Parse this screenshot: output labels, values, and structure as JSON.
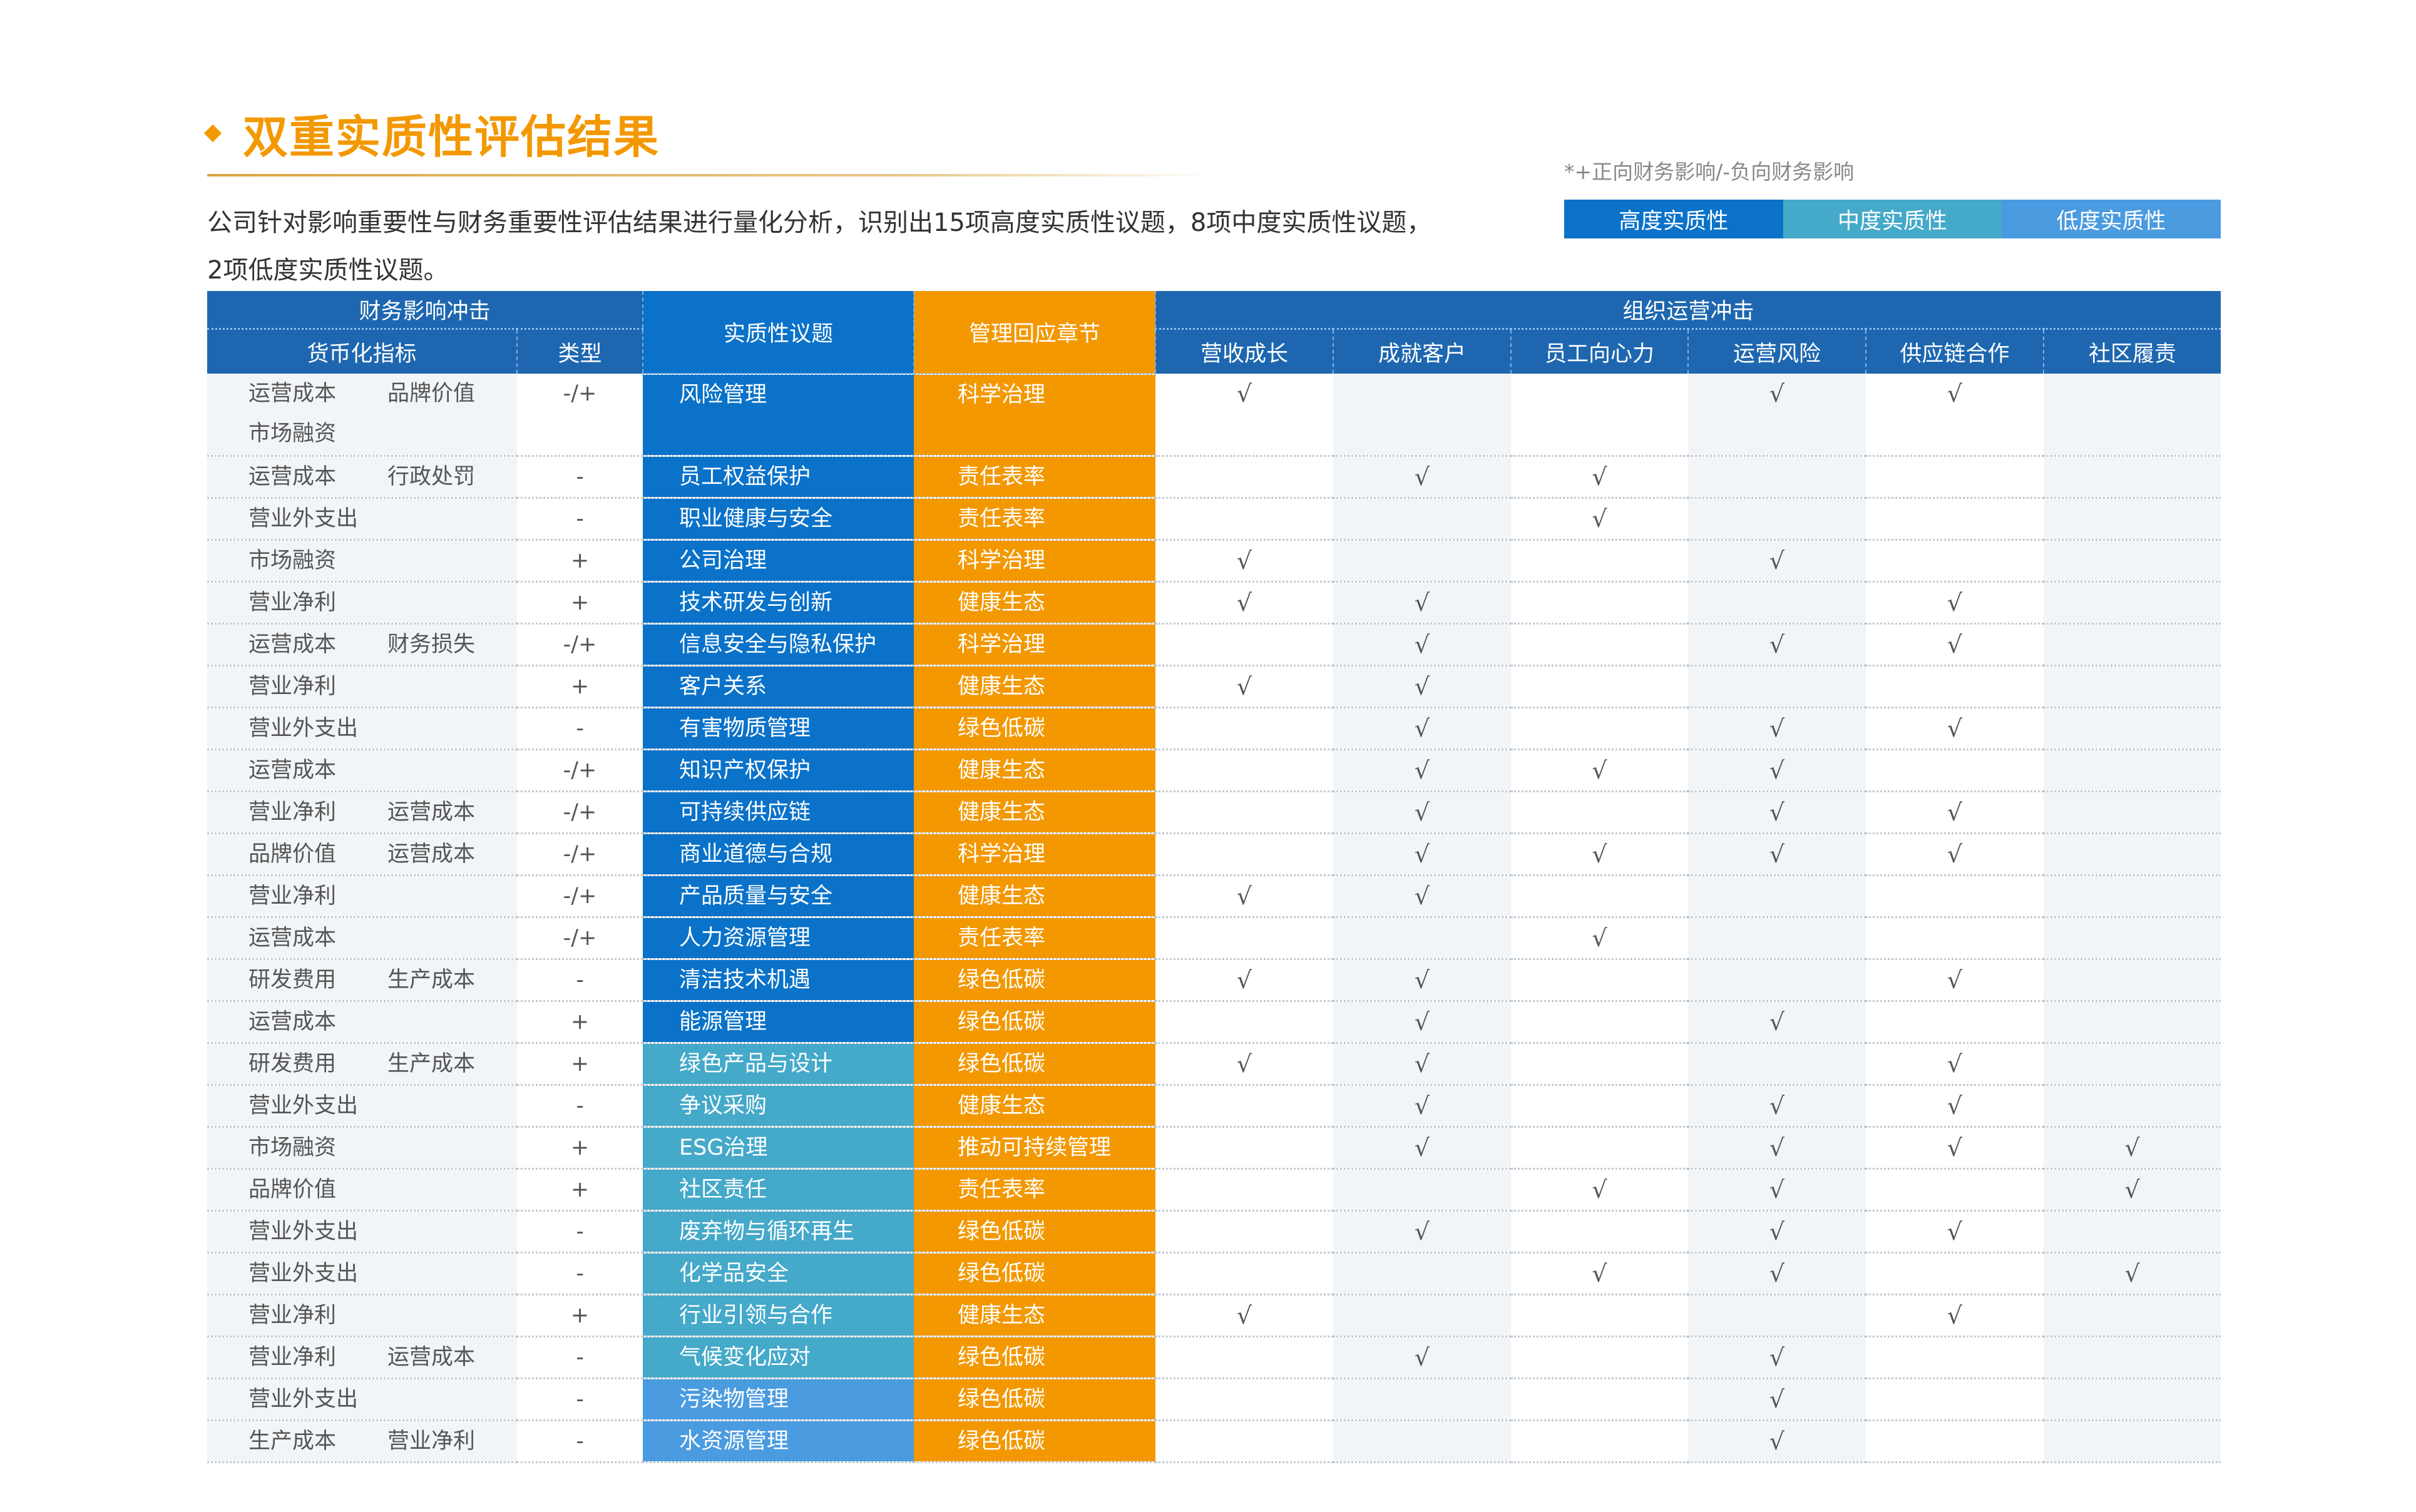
{
  "header": {
    "title": "双重实质性评估结果",
    "intro_line1": "公司针对影响重要性与财务重要性评估结果进行量化分析，识别出15项高度实质性议题，8项中度实质性议题，",
    "intro_line2": "2项低度实质性议题。",
    "note": "*+正向财务影响/-负向财务影响"
  },
  "legend": [
    {
      "label": "高度实质性",
      "color": "#0a72c9"
    },
    {
      "label": "中度实质性",
      "color": "#45a9c9"
    },
    {
      "label": "低度实质性",
      "color": "#4a9be0"
    }
  ],
  "colors": {
    "accent": "#f39800",
    "header_blue": "#1e67b0"
  },
  "table": {
    "group_financial": "财务影响冲击",
    "col_money": "货币化指标",
    "col_type": "类型",
    "col_issue": "实质性议题",
    "col_chapter": "管理回应章节",
    "group_operational": "组织运营冲击",
    "op_columns": [
      "营收成长",
      "成就客户",
      "员工向心力",
      "运营风险",
      "供应链合作",
      "社区履责"
    ],
    "check_mark": "√",
    "rows": [
      {
        "money": [
          [
            "运营成本",
            "品牌价值"
          ],
          [
            "市场融资",
            ""
          ]
        ],
        "type": "-/+",
        "issue": "风险管理",
        "level": 0,
        "chapter": "科学治理",
        "checks": [
          1,
          0,
          0,
          1,
          1,
          0
        ]
      },
      {
        "money": [
          [
            "运营成本",
            "行政处罚"
          ]
        ],
        "type": "-",
        "issue": "员工权益保护",
        "level": 0,
        "chapter": "责任表率",
        "checks": [
          0,
          1,
          1,
          0,
          0,
          0
        ]
      },
      {
        "money": [
          [
            "营业外支出",
            ""
          ]
        ],
        "type": "-",
        "issue": "职业健康与安全",
        "level": 0,
        "chapter": "责任表率",
        "checks": [
          0,
          0,
          1,
          0,
          0,
          0
        ]
      },
      {
        "money": [
          [
            "市场融资",
            ""
          ]
        ],
        "type": "+",
        "issue": "公司治理",
        "level": 0,
        "chapter": "科学治理",
        "checks": [
          1,
          0,
          0,
          1,
          0,
          0
        ]
      },
      {
        "money": [
          [
            "营业净利",
            ""
          ]
        ],
        "type": "+",
        "issue": "技术研发与创新",
        "level": 0,
        "chapter": "健康生态",
        "checks": [
          1,
          1,
          0,
          0,
          1,
          0
        ]
      },
      {
        "money": [
          [
            "运营成本",
            "财务损失"
          ]
        ],
        "type": "-/+",
        "issue": "信息安全与隐私保护",
        "level": 0,
        "chapter": "科学治理",
        "checks": [
          0,
          1,
          0,
          1,
          1,
          0
        ]
      },
      {
        "money": [
          [
            "营业净利",
            ""
          ]
        ],
        "type": "+",
        "issue": "客户关系",
        "level": 0,
        "chapter": "健康生态",
        "checks": [
          1,
          1,
          0,
          0,
          0,
          0
        ]
      },
      {
        "money": [
          [
            "营业外支出",
            ""
          ]
        ],
        "type": "-",
        "issue": "有害物质管理",
        "level": 0,
        "chapter": "绿色低碳",
        "checks": [
          0,
          1,
          0,
          1,
          1,
          0
        ]
      },
      {
        "money": [
          [
            "运营成本",
            ""
          ]
        ],
        "type": "-/+",
        "issue": "知识产权保护",
        "level": 0,
        "chapter": "健康生态",
        "checks": [
          0,
          1,
          1,
          1,
          0,
          0
        ]
      },
      {
        "money": [
          [
            "营业净利",
            "运营成本"
          ]
        ],
        "type": "-/+",
        "issue": "可持续供应链",
        "level": 0,
        "chapter": "健康生态",
        "checks": [
          0,
          1,
          0,
          1,
          1,
          0
        ]
      },
      {
        "money": [
          [
            "品牌价值",
            "运营成本"
          ]
        ],
        "type": "-/+",
        "issue": "商业道德与合规",
        "level": 0,
        "chapter": "科学治理",
        "checks": [
          0,
          1,
          1,
          1,
          1,
          0
        ]
      },
      {
        "money": [
          [
            "营业净利",
            ""
          ]
        ],
        "type": "-/+",
        "issue": "产品质量与安全",
        "level": 0,
        "chapter": "健康生态",
        "checks": [
          1,
          1,
          0,
          0,
          0,
          0
        ]
      },
      {
        "money": [
          [
            "运营成本",
            ""
          ]
        ],
        "type": "-/+",
        "issue": "人力资源管理",
        "level": 0,
        "chapter": "责任表率",
        "checks": [
          0,
          0,
          1,
          0,
          0,
          0
        ]
      },
      {
        "money": [
          [
            "研发费用",
            "生产成本"
          ]
        ],
        "type": "-",
        "issue": "清洁技术机遇",
        "level": 0,
        "chapter": "绿色低碳",
        "checks": [
          1,
          1,
          0,
          0,
          1,
          0
        ]
      },
      {
        "money": [
          [
            "运营成本",
            ""
          ]
        ],
        "type": "+",
        "issue": "能源管理",
        "level": 0,
        "chapter": "绿色低碳",
        "checks": [
          0,
          1,
          0,
          1,
          0,
          0
        ]
      },
      {
        "money": [
          [
            "研发费用",
            "生产成本"
          ]
        ],
        "type": "+",
        "issue": "绿色产品与设计",
        "level": 1,
        "chapter": "绿色低碳",
        "checks": [
          1,
          1,
          0,
          0,
          1,
          0
        ]
      },
      {
        "money": [
          [
            "营业外支出",
            ""
          ]
        ],
        "type": "-",
        "issue": "争议采购",
        "level": 1,
        "chapter": "健康生态",
        "checks": [
          0,
          1,
          0,
          1,
          1,
          0
        ]
      },
      {
        "money": [
          [
            "市场融资",
            ""
          ]
        ],
        "type": "+",
        "issue": "ESG治理",
        "level": 1,
        "chapter": "推动可持续管理",
        "checks": [
          0,
          1,
          0,
          1,
          1,
          1
        ]
      },
      {
        "money": [
          [
            "品牌价值",
            ""
          ]
        ],
        "type": "+",
        "issue": "社区责任",
        "level": 1,
        "chapter": "责任表率",
        "checks": [
          0,
          0,
          1,
          1,
          0,
          1
        ]
      },
      {
        "money": [
          [
            "营业外支出",
            ""
          ]
        ],
        "type": "-",
        "issue": "废弃物与循环再生",
        "level": 1,
        "chapter": "绿色低碳",
        "checks": [
          0,
          1,
          0,
          1,
          1,
          0
        ]
      },
      {
        "money": [
          [
            "营业外支出",
            ""
          ]
        ],
        "type": "-",
        "issue": "化学品安全",
        "level": 1,
        "chapter": "绿色低碳",
        "checks": [
          0,
          0,
          1,
          1,
          0,
          1
        ]
      },
      {
        "money": [
          [
            "营业净利",
            ""
          ]
        ],
        "type": "+",
        "issue": "行业引领与合作",
        "level": 1,
        "chapter": "健康生态",
        "checks": [
          1,
          0,
          0,
          0,
          1,
          0
        ]
      },
      {
        "money": [
          [
            "营业净利",
            "运营成本"
          ]
        ],
        "type": "-",
        "issue": "气候变化应对",
        "level": 1,
        "chapter": "绿色低碳",
        "checks": [
          0,
          1,
          0,
          1,
          0,
          0
        ]
      },
      {
        "money": [
          [
            "营业外支出",
            ""
          ]
        ],
        "type": "-",
        "issue": "污染物管理",
        "level": 2,
        "chapter": "绿色低碳",
        "checks": [
          0,
          0,
          0,
          1,
          0,
          0
        ]
      },
      {
        "money": [
          [
            "生产成本",
            "营业净利"
          ]
        ],
        "type": "-",
        "issue": "水资源管理",
        "level": 2,
        "chapter": "绿色低碳",
        "checks": [
          0,
          0,
          0,
          1,
          0,
          0
        ]
      }
    ]
  }
}
